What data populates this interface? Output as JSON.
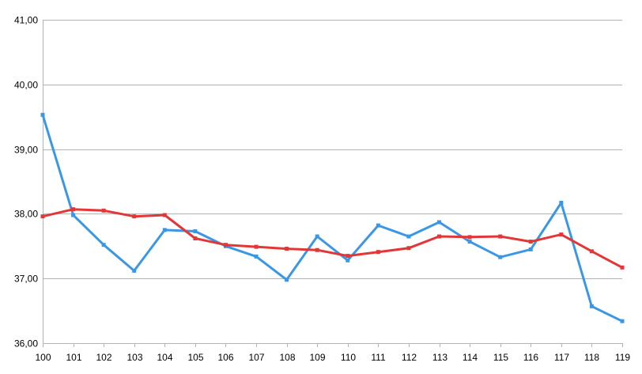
{
  "chart_data": {
    "type": "line",
    "title": "",
    "xlabel": "",
    "ylabel": "",
    "x": [
      100,
      101,
      102,
      103,
      104,
      105,
      106,
      107,
      108,
      109,
      110,
      111,
      112,
      113,
      114,
      115,
      116,
      117,
      118,
      119
    ],
    "x_tick_labels": [
      "100",
      "101",
      "102",
      "103",
      "104",
      "105",
      "106",
      "107",
      "108",
      "109",
      "110",
      "111",
      "112",
      "113",
      "114",
      "115",
      "116",
      "117",
      "118",
      "119"
    ],
    "ylim": [
      36,
      41
    ],
    "y_ticks": [
      36,
      37,
      38,
      39,
      40,
      41
    ],
    "y_tick_labels": [
      "36,00",
      "37,00",
      "38,00",
      "39,00",
      "40,00",
      "41,00"
    ],
    "grid": "horizontal",
    "legend": "none",
    "series": [
      {
        "color": "#3a97e6",
        "values": [
          39.53,
          37.98,
          37.52,
          37.12,
          37.75,
          37.73,
          37.5,
          37.34,
          36.98,
          37.65,
          37.28,
          37.82,
          37.65,
          37.87,
          37.57,
          37.33,
          37.45,
          38.17,
          36.57,
          36.34
        ]
      },
      {
        "color": "#e33636",
        "values": [
          37.96,
          38.07,
          38.05,
          37.96,
          37.98,
          37.62,
          37.52,
          37.49,
          37.46,
          37.44,
          37.35,
          37.41,
          37.47,
          37.65,
          37.64,
          37.65,
          37.57,
          37.68,
          37.42,
          37.17
        ]
      }
    ]
  }
}
